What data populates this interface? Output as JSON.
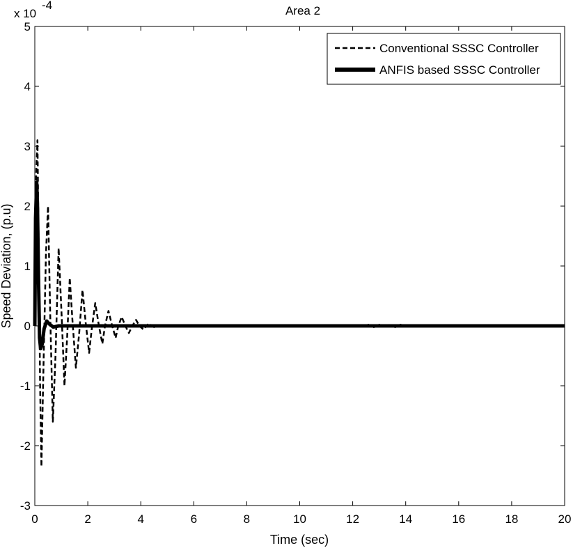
{
  "chart_data": {
    "type": "line",
    "title": "Area 2",
    "xlabel": "Time (sec)",
    "ylabel": "Speed Deviation, (p.u)",
    "y_multiplier": "x 10",
    "y_exponent": "-4",
    "xlim": [
      0,
      20
    ],
    "ylim": [
      -3,
      5
    ],
    "x_ticks": [
      0,
      2,
      4,
      6,
      8,
      10,
      12,
      14,
      16,
      18,
      20
    ],
    "x_tick_labels": [
      "0",
      "2",
      "4",
      "6",
      "8",
      "10",
      "12",
      "14",
      "16",
      "18",
      "20"
    ],
    "y_ticks": [
      -3,
      -2,
      -1,
      0,
      1,
      2,
      3,
      4,
      5
    ],
    "y_tick_labels": [
      "-3",
      "-2",
      "-1",
      "0",
      "1",
      "2",
      "3",
      "4",
      "5"
    ],
    "grid": false,
    "legend_position": "top-right",
    "series": [
      {
        "name": "Conventional SSSC Controller",
        "style": "dashed",
        "color": "#000000",
        "x": [
          0,
          0.05,
          0.1,
          0.15,
          0.2,
          0.25,
          0.33,
          0.42,
          0.5,
          0.58,
          0.68,
          0.78,
          0.9,
          1.02,
          1.12,
          1.22,
          1.32,
          1.42,
          1.55,
          1.68,
          1.8,
          1.92,
          2.05,
          2.15,
          2.28,
          2.42,
          2.55,
          2.65,
          2.78,
          2.92,
          3.05,
          3.15,
          3.28,
          3.42,
          3.55,
          3.68,
          3.82,
          3.95,
          4.1,
          4.3,
          4.5,
          4.8,
          5.0,
          12.4,
          12.6,
          12.8,
          13.0,
          13.2,
          13.4,
          13.6,
          13.8,
          14.0,
          20
        ],
        "y": [
          0,
          2.5,
          3.1,
          1.2,
          -1.0,
          -2.35,
          -0.6,
          1.2,
          2.0,
          0.2,
          -1.6,
          -0.5,
          1.3,
          0.1,
          -1.0,
          -0.2,
          0.8,
          0.1,
          -0.7,
          -0.1,
          0.6,
          0.05,
          -0.45,
          -0.05,
          0.38,
          0.0,
          -0.3,
          0.0,
          0.25,
          0.0,
          -0.2,
          0.0,
          0.15,
          0.0,
          -0.12,
          0.0,
          0.1,
          0.0,
          -0.06,
          0.04,
          -0.02,
          0.01,
          0,
          0,
          0.02,
          -0.02,
          0.02,
          -0.02,
          0.02,
          -0.02,
          0.02,
          0,
          0
        ]
      },
      {
        "name": "ANFIS based SSSC Controller",
        "style": "solid",
        "color": "#000000",
        "x": [
          0,
          0.03,
          0.07,
          0.1,
          0.14,
          0.18,
          0.22,
          0.28,
          0.35,
          0.45,
          0.55,
          0.7,
          0.9,
          1.2,
          20
        ],
        "y": [
          0,
          1.8,
          2.4,
          2.0,
          0.8,
          -0.2,
          -0.38,
          -0.3,
          -0.05,
          0.08,
          0.03,
          -0.02,
          0.0,
          0.0,
          0.0
        ]
      }
    ]
  }
}
